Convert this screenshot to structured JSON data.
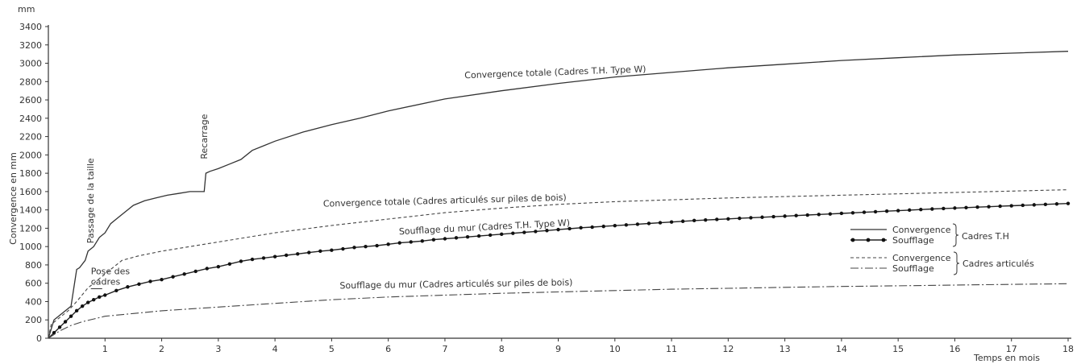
{
  "chart_data": {
    "type": "line",
    "title": "",
    "xlabel": "Temps en mois",
    "ylabel": "Convergence en mm",
    "y_unit": "mm",
    "xlim": [
      0,
      18
    ],
    "ylim": [
      0,
      3400
    ],
    "x_ticks": [
      1,
      2,
      3,
      4,
      5,
      6,
      7,
      8,
      9,
      10,
      11,
      12,
      13,
      14,
      15,
      16,
      17,
      18
    ],
    "y_ticks": [
      0,
      200,
      400,
      600,
      800,
      1000,
      1200,
      1400,
      1600,
      1800,
      2000,
      2200,
      2400,
      2600,
      2800,
      3000,
      3200,
      3400
    ],
    "grid": false,
    "legend_position": "right",
    "legend": {
      "group_th": "Cadres T.H",
      "group_art": "Cadres articulés",
      "entries": [
        {
          "label": "Convergence",
          "style": "solid",
          "group": "th"
        },
        {
          "label": "Soufflage",
          "style": "dots",
          "group": "th"
        },
        {
          "label": "Convergence",
          "style": "dashed",
          "group": "art"
        },
        {
          "label": "Soufflage",
          "style": "dashdot",
          "group": "art"
        }
      ]
    },
    "series": [
      {
        "name": "Convergence totale (Cadres T.H. Type W)",
        "style": "solid",
        "x": [
          0,
          0.1,
          0.2,
          0.3,
          0.4,
          0.45,
          0.5,
          0.55,
          0.65,
          0.7,
          0.8,
          0.9,
          1.0,
          1.1,
          1.2,
          1.3,
          1.4,
          1.5,
          1.7,
          1.9,
          2.1,
          2.3,
          2.5,
          2.75,
          2.78,
          2.85,
          3.0,
          3.2,
          3.4,
          3.6,
          3.8,
          4.0,
          4.5,
          5.0,
          5.5,
          6.0,
          7.0,
          8.0,
          9.0,
          10.0,
          11.0,
          12.0,
          13.0,
          14.0,
          15.0,
          16.0,
          17.0,
          18.0
        ],
        "y": [
          0,
          200,
          250,
          300,
          350,
          550,
          750,
          770,
          850,
          950,
          1000,
          1100,
          1150,
          1250,
          1300,
          1350,
          1400,
          1450,
          1500,
          1530,
          1560,
          1580,
          1600,
          1600,
          1800,
          1820,
          1850,
          1900,
          1950,
          2050,
          2100,
          2150,
          2250,
          2330,
          2400,
          2480,
          2610,
          2700,
          2780,
          2850,
          2900,
          2950,
          2990,
          3030,
          3060,
          3090,
          3110,
          3130
        ]
      },
      {
        "name": "Convergence totale (Cadres articulés sur piles de bois)",
        "style": "dashed",
        "x": [
          0,
          0.05,
          0.15,
          0.25,
          0.35,
          0.5,
          0.7,
          0.9,
          1.1,
          1.3,
          1.6,
          2.0,
          2.5,
          3.0,
          3.5,
          4.0,
          5.0,
          6.0,
          7.0,
          8.0,
          9.0,
          10.0,
          11.0,
          12.0,
          13.0,
          14.0,
          15.0,
          16.0,
          17.0,
          18.0
        ],
        "y": [
          0,
          150,
          200,
          250,
          300,
          400,
          550,
          650,
          750,
          850,
          900,
          950,
          1000,
          1050,
          1100,
          1150,
          1230,
          1300,
          1370,
          1420,
          1460,
          1490,
          1510,
          1530,
          1545,
          1560,
          1575,
          1590,
          1605,
          1620
        ]
      },
      {
        "name": "Soufflage du mur (Cadres T.H. Type W)",
        "style": "dots",
        "x": [
          0,
          0.1,
          0.2,
          0.3,
          0.4,
          0.5,
          0.6,
          0.7,
          0.8,
          0.9,
          1.0,
          1.2,
          1.4,
          1.6,
          1.8,
          2.0,
          2.2,
          2.4,
          2.6,
          2.8,
          3.0,
          3.2,
          3.4,
          3.6,
          3.8,
          4.0,
          4.2,
          4.4,
          4.6,
          4.8,
          5.0,
          5.2,
          5.4,
          5.6,
          5.8,
          6.0,
          6.2,
          6.4,
          6.6,
          6.8,
          7.0,
          7.2,
          7.4,
          7.6,
          7.8,
          8.0,
          8.2,
          8.4,
          8.6,
          8.8,
          9.0,
          9.2,
          9.4,
          9.6,
          9.8,
          10.0,
          10.2,
          10.4,
          10.6,
          10.8,
          11.0,
          11.2,
          11.4,
          11.6,
          11.8,
          12.0,
          12.2,
          12.4,
          12.6,
          12.8,
          13.0,
          13.2,
          13.4,
          13.6,
          13.8,
          14.0,
          14.2,
          14.4,
          14.6,
          14.8,
          15.0,
          15.2,
          15.4,
          15.6,
          15.8,
          16.0,
          16.2,
          16.4,
          16.6,
          16.8,
          17.0,
          17.2,
          17.4,
          17.6,
          17.8,
          18.0
        ],
        "y": [
          0,
          60,
          120,
          180,
          240,
          300,
          350,
          390,
          420,
          450,
          470,
          520,
          560,
          590,
          620,
          640,
          670,
          700,
          730,
          760,
          780,
          810,
          840,
          860,
          875,
          890,
          905,
          920,
          935,
          950,
          960,
          975,
          990,
          1000,
          1010,
          1025,
          1040,
          1050,
          1060,
          1075,
          1085,
          1095,
          1105,
          1115,
          1125,
          1135,
          1145,
          1155,
          1165,
          1175,
          1185,
          1195,
          1205,
          1212,
          1220,
          1228,
          1236,
          1244,
          1252,
          1260,
          1268,
          1276,
          1284,
          1290,
          1296,
          1302,
          1308,
          1314,
          1320,
          1326,
          1332,
          1338,
          1344,
          1350,
          1356,
          1362,
          1368,
          1374,
          1380,
          1386,
          1392,
          1398,
          1404,
          1410,
          1415,
          1420,
          1425,
          1430,
          1435,
          1440,
          1445,
          1450,
          1455,
          1460,
          1465,
          1470
        ]
      },
      {
        "name": "Soufflage du mur (Cadres articulés sur piles de bois)",
        "style": "dashdot",
        "x": [
          0,
          0.2,
          0.4,
          0.6,
          0.8,
          1.0,
          1.5,
          2.0,
          3.0,
          4.0,
          5.0,
          6.0,
          7.0,
          8.0,
          9.0,
          10.0,
          11.0,
          12.0,
          13.0,
          14.0,
          15.0,
          16.0,
          17.0,
          18.0
        ],
        "y": [
          0,
          80,
          140,
          180,
          210,
          240,
          270,
          300,
          340,
          380,
          420,
          450,
          470,
          490,
          505,
          520,
          535,
          545,
          555,
          565,
          572,
          580,
          588,
          595
        ]
      }
    ],
    "annotations": [
      {
        "id": "passage",
        "text": "Passage de la taille",
        "x": 0.8,
        "y": 1500,
        "rotate": -90
      },
      {
        "id": "recarrage",
        "text": "Recarrage",
        "x": 2.8,
        "y": 2200,
        "rotate": -90
      },
      {
        "id": "pose",
        "text": "Pose des cadres",
        "lines": [
          "Pose des",
          "cadres"
        ],
        "x": 0.75,
        "y": 700
      },
      {
        "id": "lbl_conv_th",
        "text": "Convergence totale (Cadres T.H. Type W)",
        "x": 8.95,
        "y": 2870,
        "rotate": -2
      },
      {
        "id": "lbl_conv_art",
        "text": "Convergence totale (Cadres articulés sur piles de bois)",
        "x": 7.0,
        "y": 1470,
        "rotate": -1.5
      },
      {
        "id": "lbl_souf_th",
        "text": "Soufflage du mur (Cadres T.H. Type W)",
        "x": 7.7,
        "y": 1180,
        "rotate": -3
      },
      {
        "id": "lbl_souf_art",
        "text": "Soufflage du mur (Cadres articulés sur piles de bois)",
        "x": 7.2,
        "y": 560,
        "rotate": -0.8
      }
    ]
  }
}
